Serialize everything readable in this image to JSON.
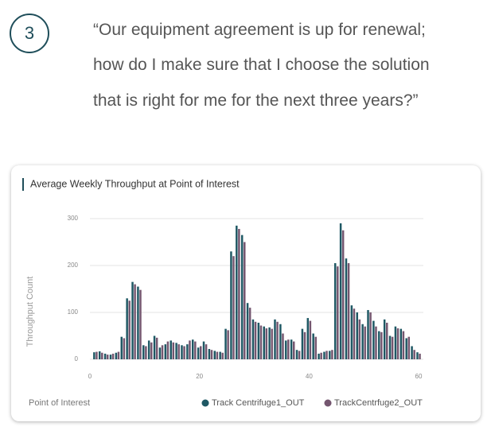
{
  "number": "3",
  "quote": [
    "“Our equipment agreement is up for renewal;",
    "how do I make sure that I choose the solution",
    "that is right for me for the next three years?”"
  ],
  "chart_data": {
    "type": "bar",
    "title": "Average Weekly Throughput at Point of Interest",
    "x_label": "Point of Interest",
    "y_label": "Throughput Count",
    "x": [
      1,
      2,
      3,
      4,
      5,
      6,
      7,
      8,
      9,
      10,
      11,
      12,
      13,
      14,
      15,
      16,
      17,
      18,
      19,
      20,
      21,
      22,
      23,
      24,
      25,
      26,
      27,
      28,
      29,
      30,
      31,
      32,
      33,
      34,
      35,
      36,
      37,
      38,
      39,
      40,
      41,
      42,
      43,
      44,
      45,
      46,
      47,
      48,
      49,
      50,
      51,
      52,
      53,
      54,
      55,
      56,
      57,
      58,
      59,
      60
    ],
    "series": [
      {
        "name": "Track Centrifuge1_OUT",
        "color": "#1e5864",
        "values": [
          15,
          17,
          12,
          10,
          14,
          48,
          130,
          165,
          155,
          30,
          40,
          50,
          25,
          32,
          40,
          35,
          30,
          32,
          42,
          25,
          38,
          22,
          18,
          16,
          65,
          230,
          285,
          265,
          120,
          85,
          78,
          70,
          68,
          85,
          75,
          40,
          42,
          20,
          65,
          88,
          55,
          12,
          16,
          18,
          205,
          290,
          215,
          115,
          100,
          75,
          105,
          82,
          60,
          85,
          50,
          70,
          65,
          45,
          28,
          15
        ]
      },
      {
        "name": "TrackCentrfuge2_OUT",
        "color": "#74566f",
        "values": [
          16,
          14,
          10,
          12,
          16,
          45,
          125,
          160,
          148,
          28,
          36,
          46,
          30,
          38,
          36,
          32,
          28,
          40,
          38,
          28,
          32,
          20,
          16,
          14,
          62,
          220,
          278,
          250,
          110,
          80,
          72,
          66,
          65,
          80,
          55,
          42,
          38,
          18,
          58,
          82,
          48,
          14,
          18,
          20,
          198,
          275,
          205,
          108,
          85,
          70,
          100,
          70,
          58,
          78,
          48,
          66,
          60,
          48,
          20,
          12
        ]
      }
    ],
    "xlim": [
      0,
      60
    ],
    "xticks": [
      0,
      20,
      40,
      60
    ],
    "ylim": [
      0,
      300
    ],
    "yticks": [
      0,
      100,
      200,
      300
    ],
    "grid": true
  }
}
